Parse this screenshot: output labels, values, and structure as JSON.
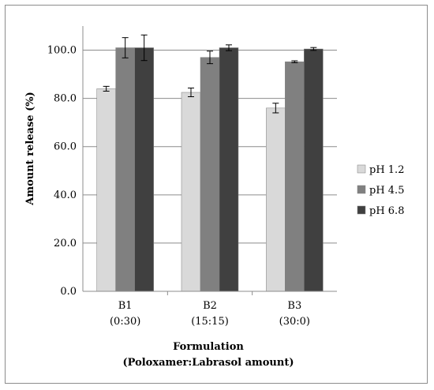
{
  "chart_data": {
    "type": "bar",
    "categories": [
      {
        "line1": "B1",
        "line2": "(0:30)"
      },
      {
        "line1": "B2",
        "line2": "(15:15)"
      },
      {
        "line1": "B3",
        "line2": "(30:0)"
      }
    ],
    "series": [
      {
        "name": "pH 1.2",
        "color": "#d9d9d9",
        "values": [
          84.0,
          82.5,
          76.0
        ],
        "errors": [
          1.0,
          1.8,
          2.0
        ]
      },
      {
        "name": "pH 4.5",
        "color": "#808080",
        "values": [
          101.0,
          97.0,
          95.2
        ],
        "errors": [
          4.2,
          2.6,
          0.4
        ]
      },
      {
        "name": "pH 6.8",
        "color": "#404040",
        "values": [
          101.0,
          101.0,
          100.5
        ],
        "errors": [
          5.3,
          1.2,
          0.6
        ]
      }
    ],
    "yticks": [
      "0.0",
      "20.0",
      "40.0",
      "60.0",
      "80.0",
      "100.0"
    ],
    "ylim": [
      0,
      110
    ],
    "ylabel": "Amount release (%)",
    "xlabel_line1": "Formulation",
    "xlabel_line2": "(Poloxamer:Labrasol amount)",
    "grid": true,
    "legend": "right"
  }
}
